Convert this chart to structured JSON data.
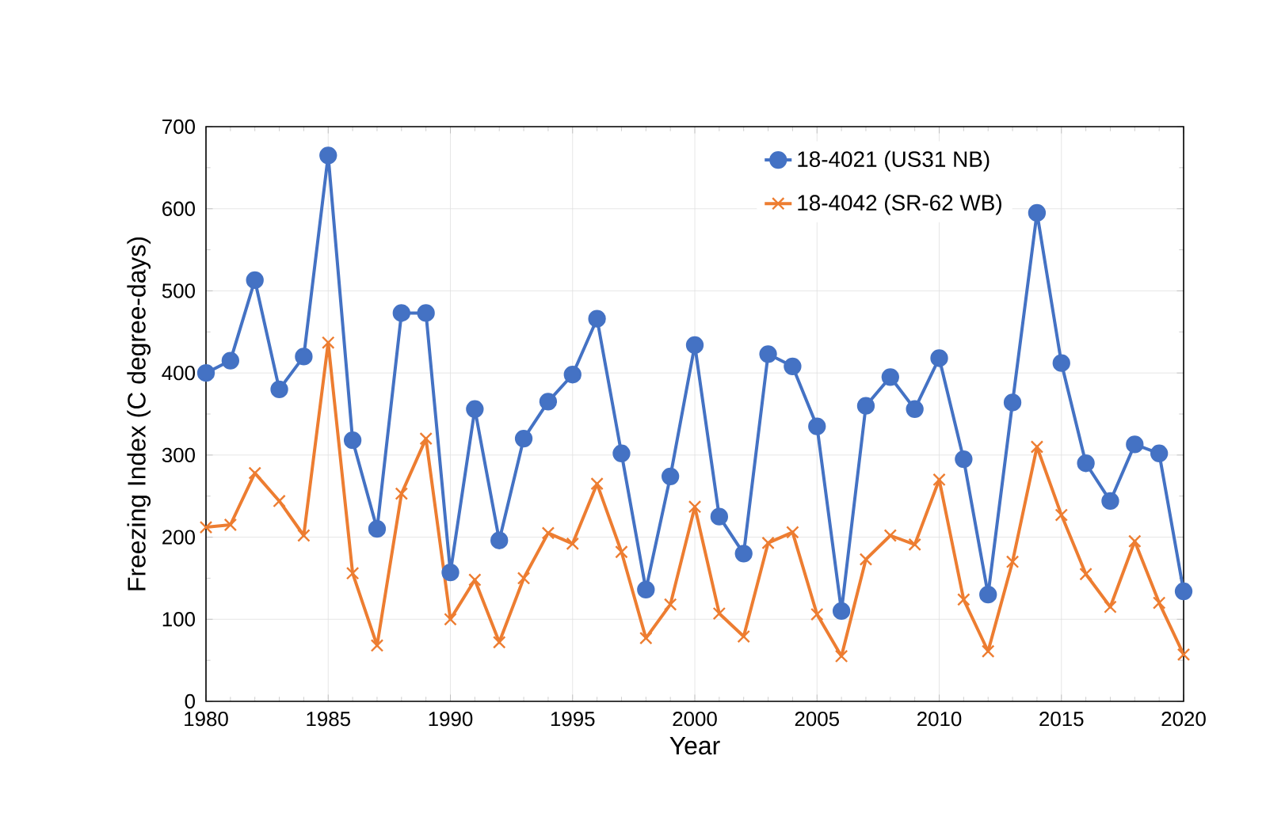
{
  "chart_data": {
    "type": "line",
    "xlabel": "Year",
    "ylabel": "Freezing Index (C degree-days)",
    "x": [
      1980,
      1981,
      1982,
      1983,
      1984,
      1985,
      1986,
      1987,
      1988,
      1989,
      1990,
      1991,
      1992,
      1993,
      1994,
      1995,
      1996,
      1997,
      1998,
      1999,
      2000,
      2001,
      2002,
      2003,
      2004,
      2005,
      2006,
      2007,
      2008,
      2009,
      2010,
      2011,
      2012,
      2013,
      2014,
      2015,
      2016,
      2017,
      2018,
      2019,
      2020
    ],
    "series": [
      {
        "name": "18-4021 (US31 NB)",
        "color": "#4472c4",
        "marker": "circle",
        "values": [
          400,
          415,
          513,
          380,
          420,
          665,
          318,
          210,
          473,
          473,
          157,
          356,
          196,
          320,
          365,
          398,
          466,
          302,
          136,
          274,
          434,
          225,
          180,
          423,
          408,
          335,
          110,
          360,
          395,
          356,
          418,
          295,
          130,
          364,
          595,
          412,
          290,
          244,
          313,
          302,
          134
        ]
      },
      {
        "name": "18-4042 (SR-62 WB)",
        "color": "#ed7d31",
        "marker": "cross",
        "values": [
          212,
          215,
          278,
          244,
          202,
          437,
          156,
          68,
          253,
          320,
          100,
          148,
          72,
          150,
          205,
          192,
          265,
          182,
          77,
          118,
          237,
          107,
          79,
          193,
          206,
          106,
          55,
          173,
          202,
          191,
          270,
          124,
          61,
          170,
          310,
          227,
          155,
          115,
          195,
          120,
          57
        ]
      }
    ],
    "xlim": [
      1980,
      2020
    ],
    "xticks": [
      1980,
      1985,
      1990,
      1995,
      2000,
      2005,
      2010,
      2015,
      2020
    ],
    "ylim": [
      0,
      700
    ],
    "yticks": [
      0,
      100,
      200,
      300,
      400,
      500,
      600,
      700
    ],
    "grid": true,
    "legend": "top right",
    "line_style": "solid"
  }
}
